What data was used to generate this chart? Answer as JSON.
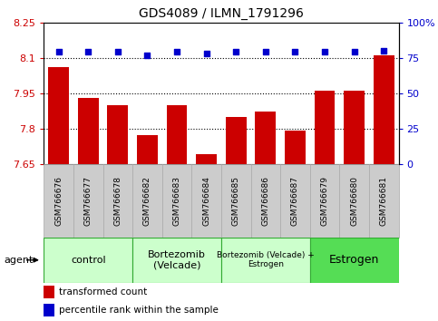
{
  "title": "GDS4089 / ILMN_1791296",
  "samples": [
    "GSM766676",
    "GSM766677",
    "GSM766678",
    "GSM766682",
    "GSM766683",
    "GSM766684",
    "GSM766685",
    "GSM766686",
    "GSM766687",
    "GSM766679",
    "GSM766680",
    "GSM766681"
  ],
  "bar_values": [
    8.06,
    7.93,
    7.9,
    7.77,
    7.9,
    7.69,
    7.85,
    7.87,
    7.79,
    7.96,
    7.96,
    8.11
  ],
  "dot_values": [
    79,
    79,
    79,
    77,
    79,
    78,
    79,
    79,
    79,
    79,
    79,
    80
  ],
  "ylim_left": [
    7.65,
    8.25
  ],
  "ylim_right": [
    0,
    100
  ],
  "yticks_left": [
    7.65,
    7.8,
    7.95,
    8.1,
    8.25
  ],
  "yticks_right": [
    0,
    25,
    50,
    75,
    100
  ],
  "ytick_labels_left": [
    "7.65",
    "7.8",
    "7.95",
    "8.1",
    "8.25"
  ],
  "ytick_labels_right": [
    "0",
    "25",
    "50",
    "75",
    "100%"
  ],
  "hlines": [
    8.1,
    7.95,
    7.8
  ],
  "bar_color": "#cc0000",
  "dot_color": "#0000cc",
  "bar_bottom": 7.65,
  "groups": [
    {
      "label": "control",
      "start": 0,
      "end": 3,
      "fontsize": 8
    },
    {
      "label": "Bortezomib\n(Velcade)",
      "start": 3,
      "end": 6,
      "fontsize": 8
    },
    {
      "label": "Bortezomib (Velcade) +\nEstrogen",
      "start": 6,
      "end": 9,
      "fontsize": 6.5
    },
    {
      "label": "Estrogen",
      "start": 9,
      "end": 12,
      "fontsize": 9
    }
  ],
  "group_colors": [
    "#ccffcc",
    "#ccffcc",
    "#ccffcc",
    "#55dd55"
  ],
  "group_border_color": "#33aa33",
  "legend_items": [
    {
      "color": "#cc0000",
      "label": "transformed count"
    },
    {
      "color": "#0000cc",
      "label": "percentile rank within the sample"
    }
  ],
  "agent_label": "agent",
  "bar_color_left": "#cc0000",
  "dot_color_right": "#0000cc",
  "title_fontsize": 10,
  "tick_fontsize": 8,
  "bar_width": 0.7,
  "xtick_bg": "#cccccc",
  "xtick_border": "#aaaaaa",
  "plot_bg": "#ffffff"
}
